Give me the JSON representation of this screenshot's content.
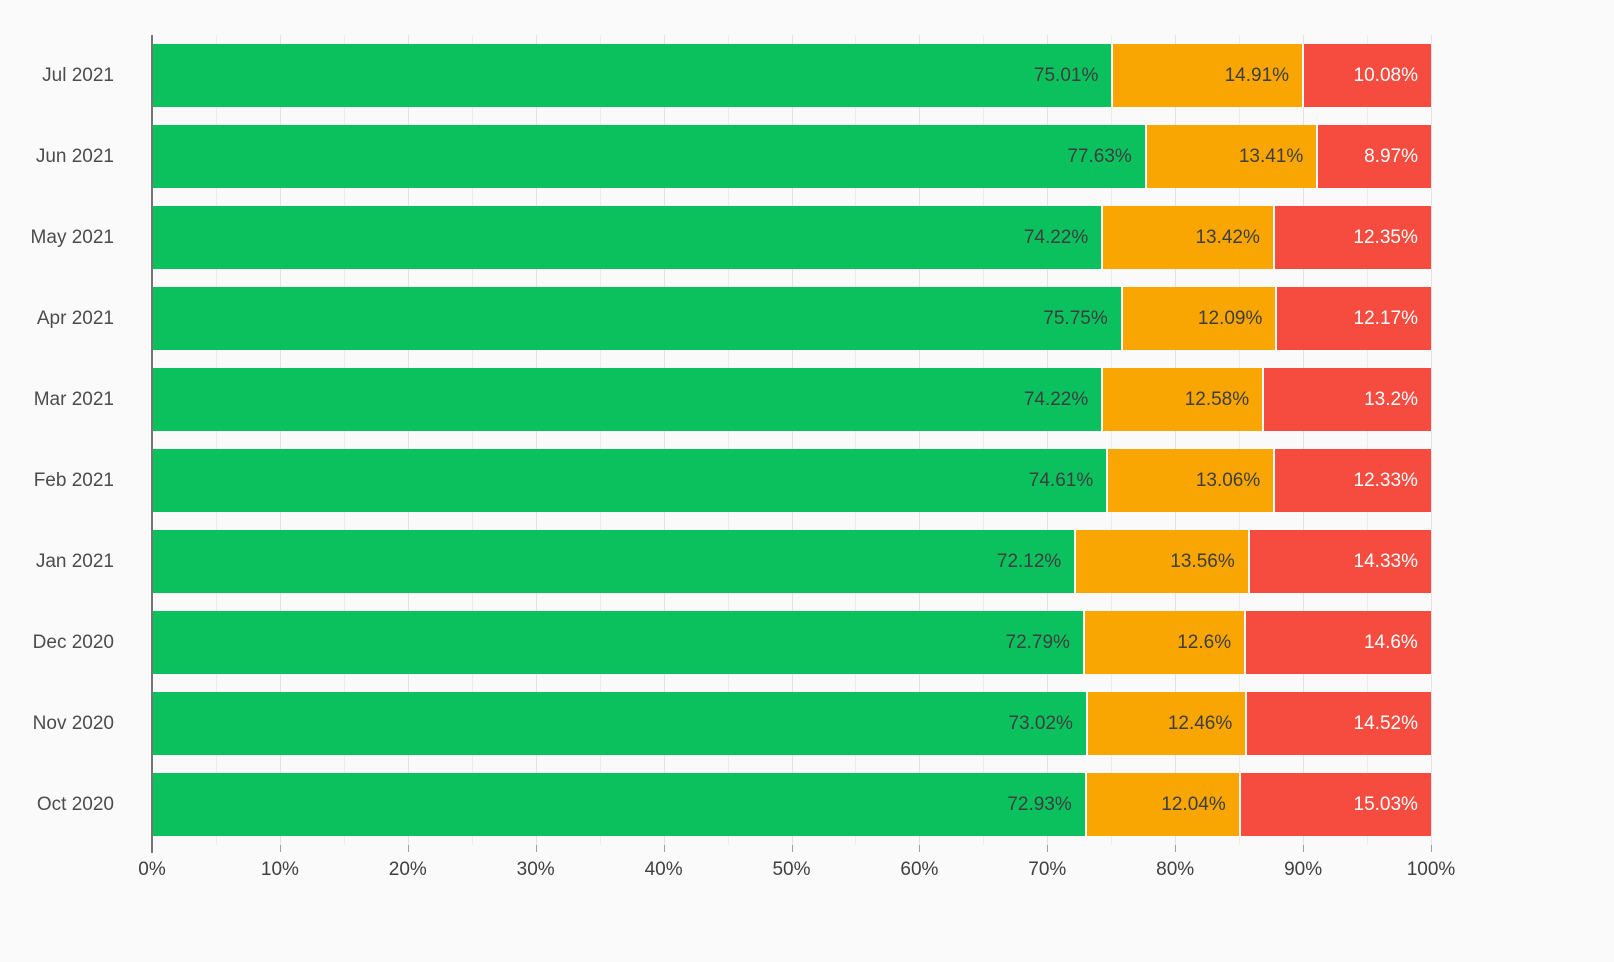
{
  "chart_data": {
    "type": "bar",
    "orientation": "horizontal",
    "stacked": true,
    "title": "",
    "xlabel": "",
    "ylabel": "",
    "xlim": [
      0,
      100
    ],
    "grid": true,
    "grid_step_minor": 5,
    "grid_step_major": 10,
    "legend": "none",
    "categories": [
      "Jul 2021",
      "Jun 2021",
      "May 2021",
      "Apr 2021",
      "Mar 2021",
      "Feb 2021",
      "Jan 2021",
      "Dec 2020",
      "Nov 2020",
      "Oct 2020"
    ],
    "series": [
      {
        "name": "green-segment",
        "color": "#0bc15e",
        "label_color": "#3e3e3e",
        "values": [
          75.01,
          77.63,
          74.22,
          75.75,
          74.22,
          74.61,
          72.12,
          72.79,
          73.02,
          72.93
        ],
        "labels": [
          "75.01%",
          "77.63%",
          "74.22%",
          "75.75%",
          "74.22%",
          "74.61%",
          "72.12%",
          "72.79%",
          "73.02%",
          "72.93%"
        ]
      },
      {
        "name": "orange-segment",
        "color": "#f9a602",
        "label_color": "#3e3e3e",
        "values": [
          14.91,
          13.41,
          13.42,
          12.09,
          12.58,
          13.06,
          13.56,
          12.6,
          12.46,
          12.04
        ],
        "labels": [
          "14.91%",
          "13.41%",
          "13.42%",
          "12.09%",
          "12.58%",
          "13.06%",
          "13.56%",
          "12.6%",
          "12.46%",
          "12.04%"
        ]
      },
      {
        "name": "red-segment",
        "color": "#f64c3f",
        "label_color": "#ffffff",
        "values": [
          10.08,
          8.97,
          12.35,
          12.17,
          13.2,
          12.33,
          14.33,
          14.6,
          14.52,
          15.03
        ],
        "labels": [
          "10.08%",
          "8.97%",
          "12.35%",
          "12.17%",
          "13.2%",
          "12.33%",
          "14.33%",
          "14.6%",
          "14.52%",
          "15.03%"
        ]
      }
    ],
    "x_ticks": [
      "0%",
      "10%",
      "20%",
      "30%",
      "40%",
      "50%",
      "60%",
      "70%",
      "80%",
      "90%",
      "100%"
    ],
    "x_tick_values": [
      0,
      10,
      20,
      30,
      40,
      50,
      60,
      70,
      80,
      90,
      100
    ]
  },
  "colors": {
    "background": "#fafafa",
    "gridline_minor": "#ececec",
    "gridline_major": "#e3e3e3",
    "axis_line": "#757575",
    "category_label": "#4c4c4c",
    "tick_label": "#404040"
  }
}
